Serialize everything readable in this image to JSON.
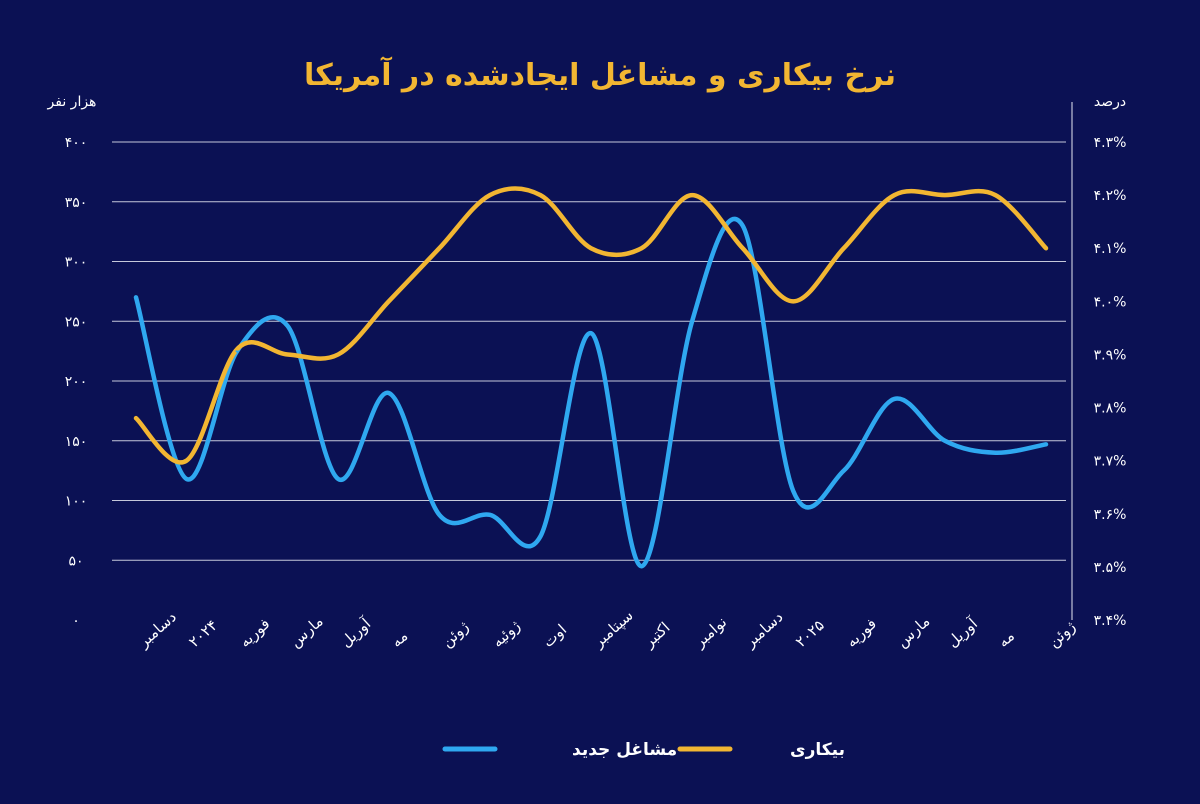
{
  "colors": {
    "background": "#0b1154",
    "jobs": "#2fa8f0",
    "unemployment": "#f2b632",
    "title": "#f2b632",
    "text": "#ffffff",
    "grid": "#e6e8f2"
  },
  "chart_data": {
    "type": "line",
    "title": "نرخ بیکاری و مشاغل ایجادشده در آمریکا",
    "ylabel_left": "هزار نفر",
    "ylabel_right": "درصد",
    "ylim_left": [
      0,
      400
    ],
    "ylim_right": [
      3.4,
      4.3
    ],
    "yticks_left": [
      "۰",
      "۵۰",
      "۱۰۰",
      "۱۵۰",
      "۲۰۰",
      "۲۵۰",
      "۳۰۰",
      "۳۵۰",
      "۴۰۰"
    ],
    "yticks_right": [
      "۳.۴%",
      "۳.۵%",
      "۳.۶%",
      "۳.۷%",
      "۳.۸%",
      "۳.۹%",
      "۴.۰%",
      "۴.۱%",
      "۴.۲%",
      "۴.۳%"
    ],
    "categories": [
      "دسامبر",
      "۲۰۲۴",
      "فوریه",
      "مارس",
      "آوریل",
      "مه",
      "ژوئن",
      "ژوئیه",
      "اوت",
      "سپتامبر",
      "اکتبر",
      "نوامبر",
      "دسامبر",
      "۲۰۲۵",
      "فوریه",
      "مارس",
      "آوریل",
      "مه",
      "ژوئن"
    ],
    "grid": true,
    "legend_position": "bottom",
    "series": [
      {
        "name": "مشاغل جدید",
        "axis": "left",
        "values": [
          270,
          118,
          225,
          246,
          118,
          190,
          88,
          88,
          70,
          240,
          45,
          250,
          330,
          108,
          125,
          185,
          150,
          140,
          147
        ]
      },
      {
        "name": "بیکاری",
        "axis": "right",
        "values": [
          3.78,
          3.7,
          3.91,
          3.9,
          3.9,
          4.0,
          4.1,
          4.2,
          4.2,
          4.1,
          4.1,
          4.2,
          4.1,
          4.0,
          4.1,
          4.2,
          4.2,
          4.2,
          4.1
        ]
      }
    ]
  }
}
